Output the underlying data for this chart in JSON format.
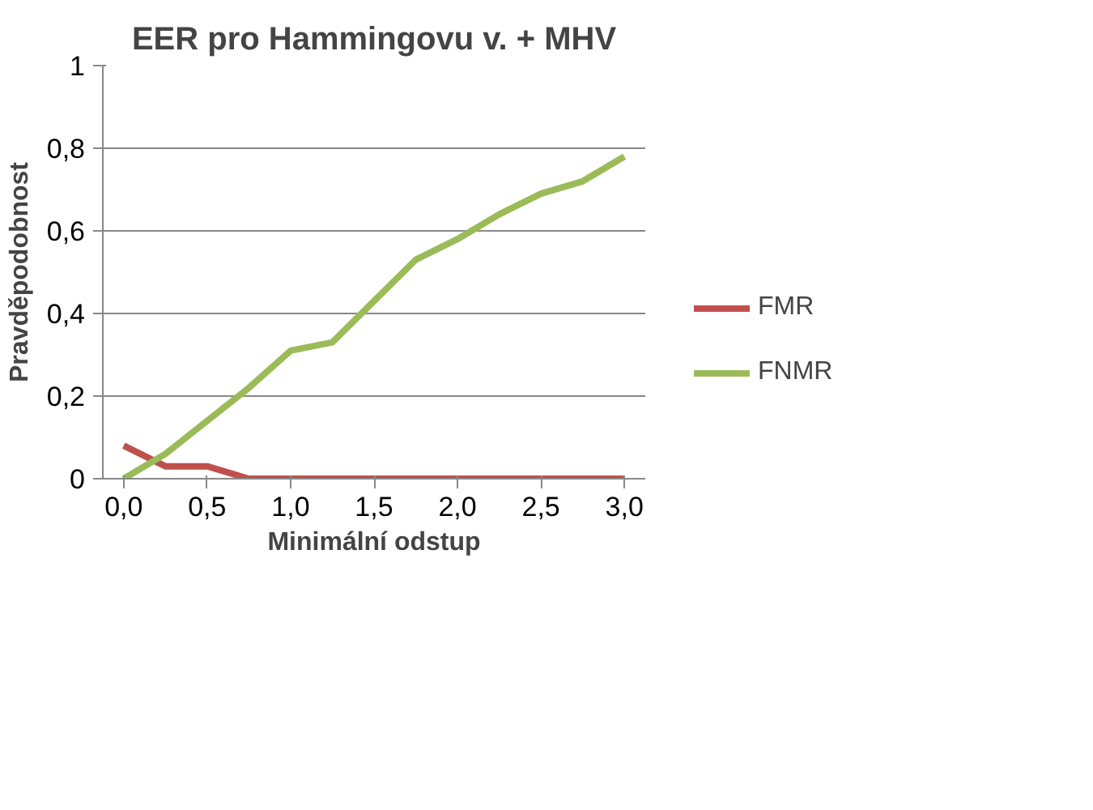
{
  "chart_data": {
    "type": "line",
    "title": "EER pro Hammingovu v. + MHV",
    "xlabel": "Minimální odstup",
    "ylabel": "Pravděpodobnost",
    "x": [
      0,
      0.25,
      0.5,
      0.75,
      1.0,
      1.25,
      1.5,
      1.75,
      2.0,
      2.25,
      2.5,
      2.75,
      3.0
    ],
    "series": [
      {
        "name": "FMR",
        "color": "#c0504d",
        "values": [
          0.08,
          0.03,
          0.03,
          0,
          0,
          0,
          0,
          0,
          0,
          0,
          0,
          0,
          0
        ]
      },
      {
        "name": "FNMR",
        "color": "#9bbb59",
        "values": [
          0,
          0.06,
          0.14,
          0.22,
          0.31,
          0.33,
          0.43,
          0.53,
          0.58,
          0.64,
          0.69,
          0.72,
          0.78
        ]
      }
    ],
    "xlim": [
      -0.125,
      3.125
    ],
    "xticks": [
      {
        "value": 0,
        "label": "0,0"
      },
      {
        "value": 0.5,
        "label": "0,5"
      },
      {
        "value": 1.0,
        "label": "1,0"
      },
      {
        "value": 1.5,
        "label": "1,5"
      },
      {
        "value": 2.0,
        "label": "2,0"
      },
      {
        "value": 2.5,
        "label": "2,5"
      },
      {
        "value": 3.0,
        "label": "3,0"
      }
    ],
    "ylim": [
      0,
      1
    ],
    "yticks": [
      0,
      {
        "value": 0.2,
        "label": "0,2"
      },
      {
        "value": 0.4,
        "label": "0,4"
      },
      {
        "value": 0.6,
        "label": "0,6"
      },
      {
        "value": 0.8,
        "label": "0,8"
      },
      1
    ],
    "grid": "y",
    "legend": "right",
    "marker": "none",
    "line_style": "solid"
  }
}
